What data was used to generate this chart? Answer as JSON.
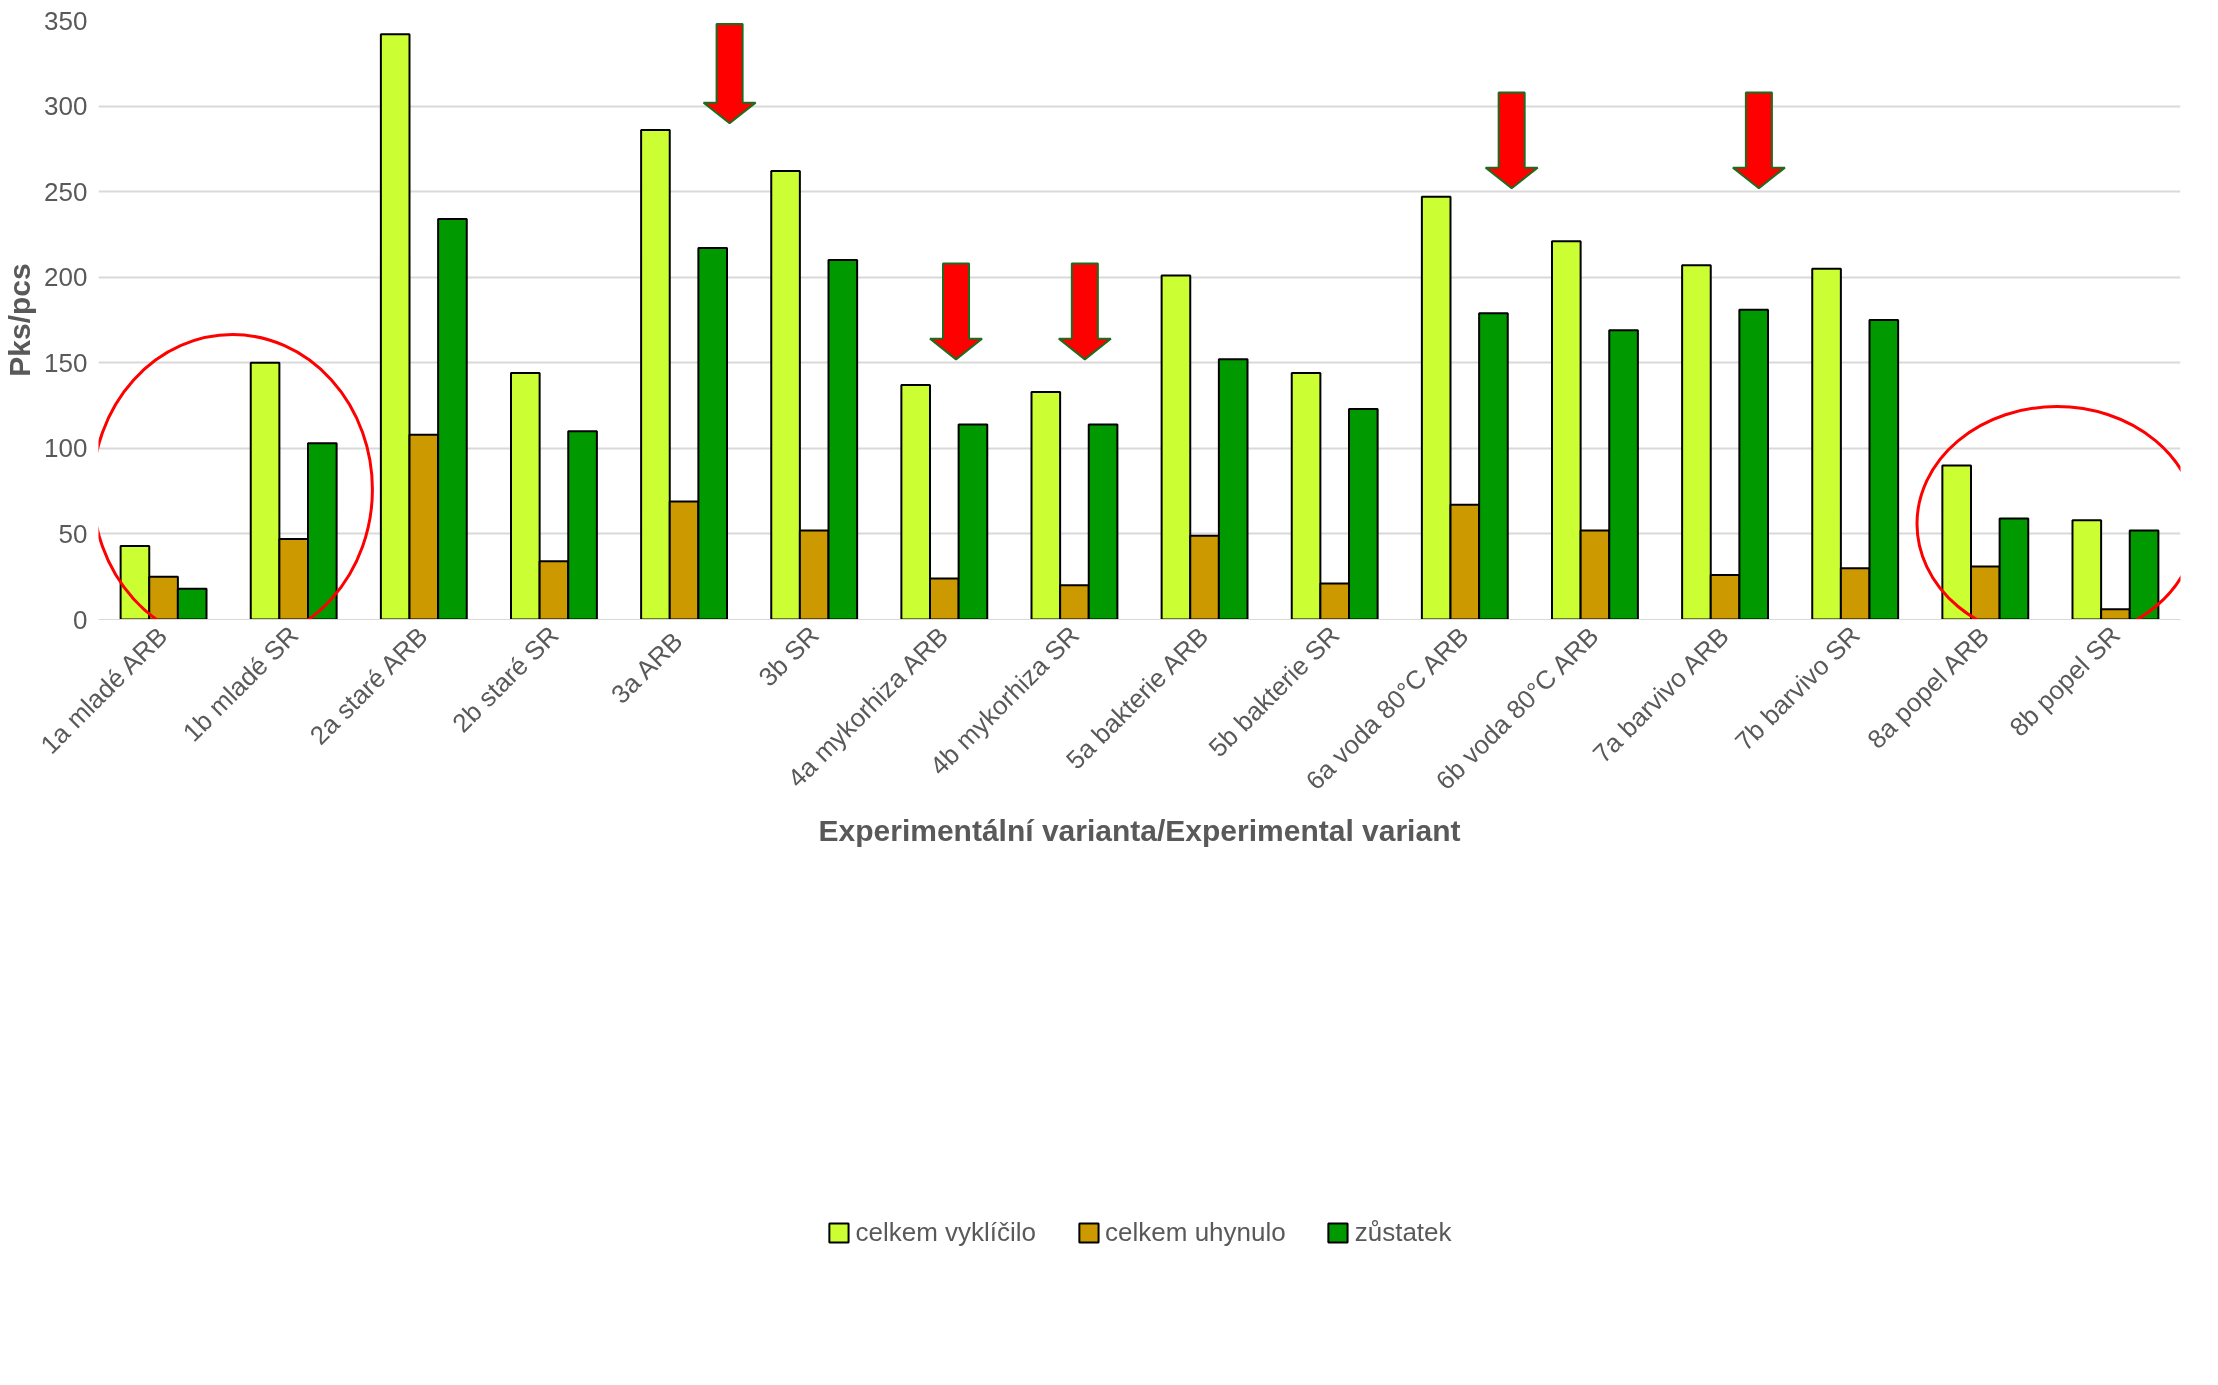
{
  "chart_data": {
    "type": "bar",
    "xlabel": "Experimentální varianta/Experimental variant",
    "ylabel": "Pks/pcs",
    "categories": [
      "1a mladé ARB",
      "1b mladé SR",
      "2a staré ARB",
      "2b staré SR",
      "3a  ARB",
      "3b SR",
      "4a mykorhiza ARB",
      "4b mykorhiza SR",
      "5a bakterie ARB",
      "5b bakterie SR",
      "6a voda 80°C ARB",
      "6b voda 80°C ARB",
      "7a barvivo ARB",
      "7b barvivo SR",
      "8a popel ARB",
      "8b popel SR"
    ],
    "series": [
      {
        "name": "celkem vyklíčilo",
        "color": "#ccff33",
        "values": [
          43,
          150,
          342,
          144,
          286,
          262,
          137,
          133,
          201,
          144,
          247,
          221,
          207,
          205,
          90,
          58
        ]
      },
      {
        "name": "celkem uhynulo",
        "color": "#cc9900",
        "values": [
          25,
          47,
          108,
          34,
          69,
          52,
          24,
          20,
          49,
          21,
          67,
          52,
          26,
          30,
          31,
          6
        ]
      },
      {
        "name": "zůstatek",
        "color": "#009900",
        "values": [
          18,
          103,
          234,
          110,
          217,
          210,
          114,
          114,
          152,
          123,
          179,
          169,
          181,
          175,
          59,
          52
        ]
      }
    ],
    "ylim": [
      0,
      350
    ],
    "yticks": [
      0,
      50,
      100,
      150,
      200,
      250,
      300,
      350
    ],
    "grid": "y",
    "legend": "bottom"
  }
}
